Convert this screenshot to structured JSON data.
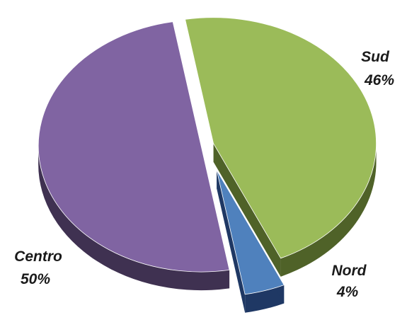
{
  "chart_data": {
    "type": "pie",
    "title": "",
    "legend": "none",
    "style": "3d-exploded",
    "slices": [
      {
        "label": "Sud",
        "value": 46,
        "value_label": "46%",
        "color": "#9bbb59",
        "side_color": "#4f6228"
      },
      {
        "label": "Nord",
        "value": 4,
        "value_label": "4%",
        "color": "#4f81bd",
        "side_color": "#1f3864"
      },
      {
        "label": "Centro",
        "value": 50,
        "value_label": "50%",
        "color": "#8064a2",
        "side_color": "#3f3151"
      }
    ]
  }
}
